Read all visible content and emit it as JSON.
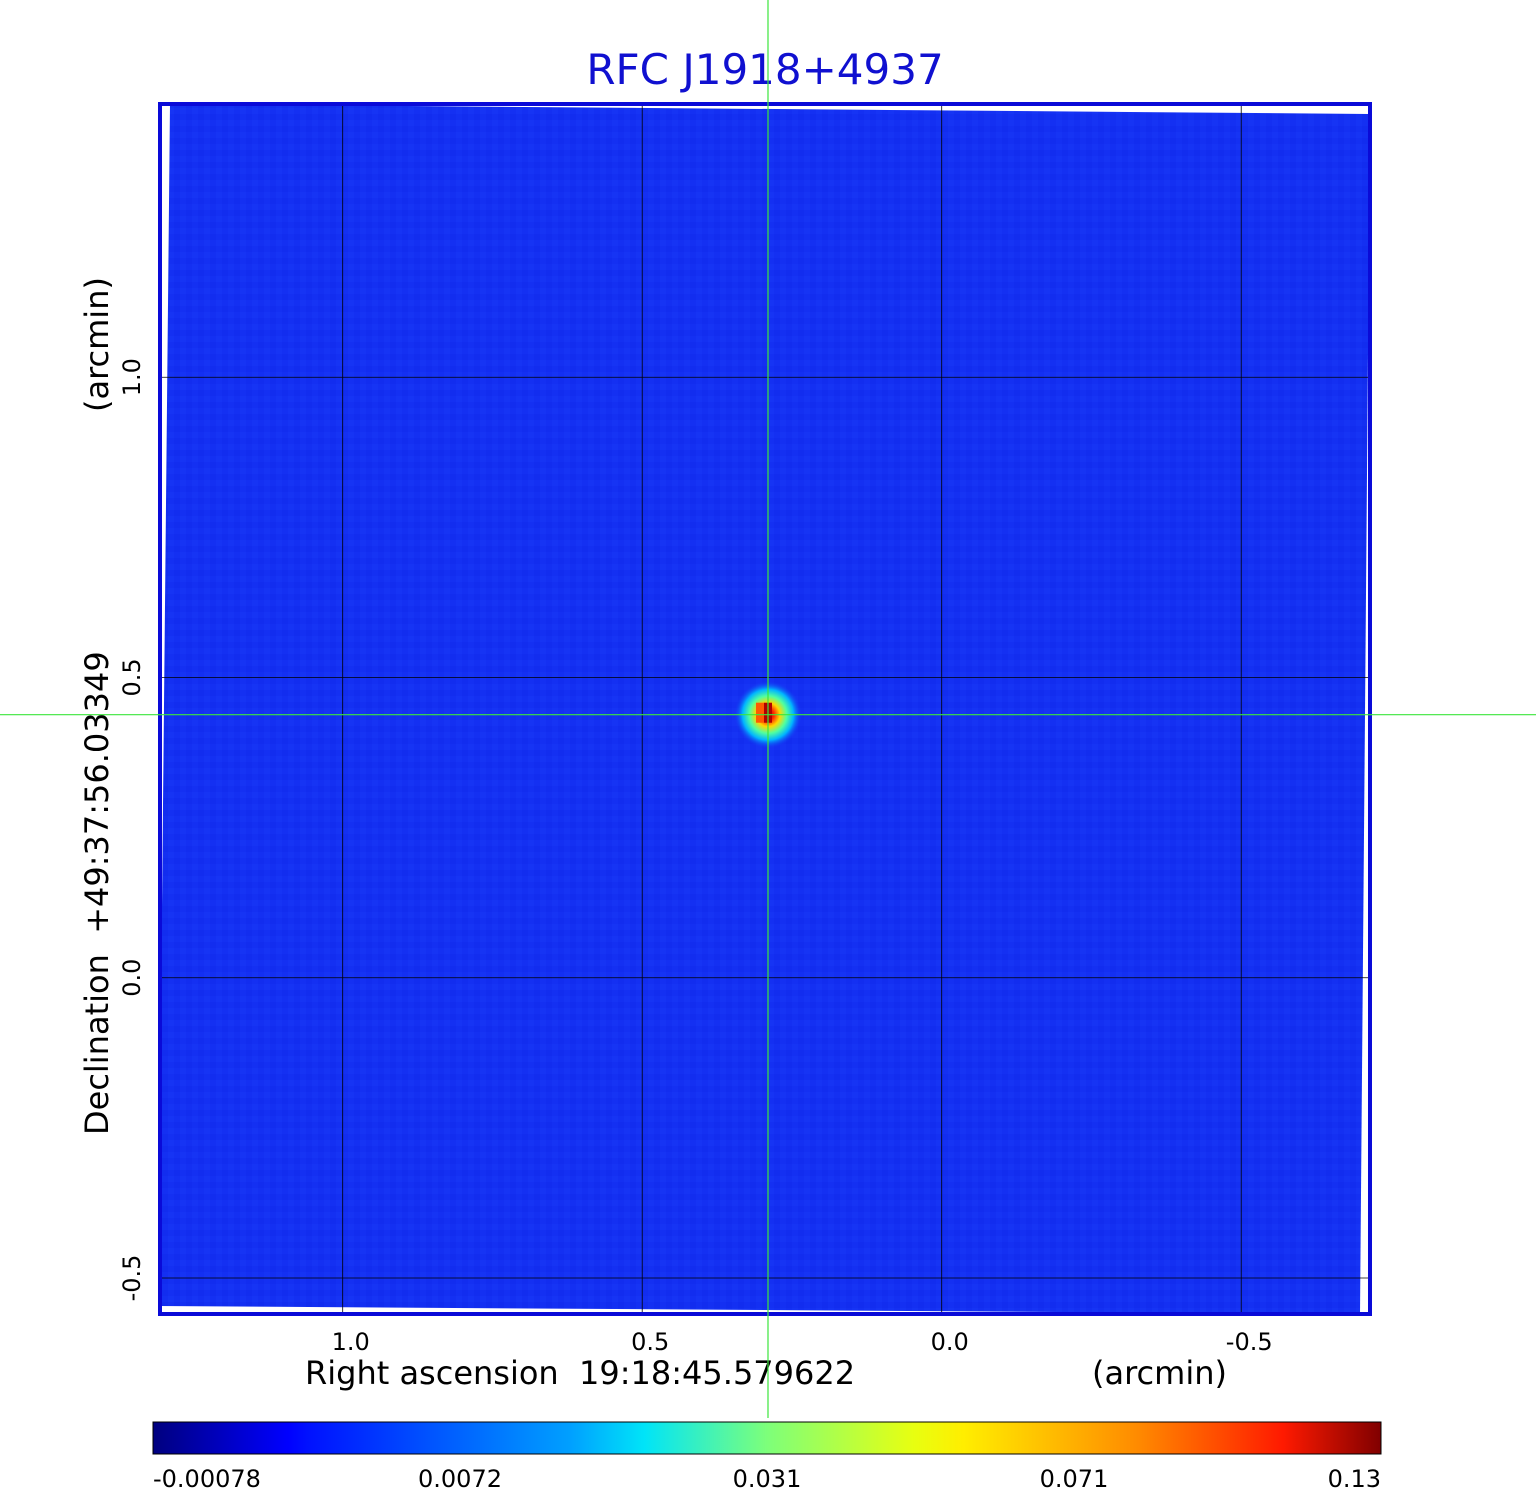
{
  "chart_data": {
    "type": "heatmap",
    "title": "RFC J1918+4937",
    "xlabel": "Right ascension  19:18:45.579622",
    "xunit": "(arcmin)",
    "ylabel": "Declination  +49:37:56.03349",
    "yunit": "(arcmin)",
    "x_range": [
      1.305,
      -0.715
    ],
    "y_range": [
      -0.56,
      1.455
    ],
    "x_ticks": [
      {
        "value": 1.0,
        "label": "1.0"
      },
      {
        "value": 0.5,
        "label": "0.5"
      },
      {
        "value": 0.0,
        "label": "0.0"
      },
      {
        "value": -0.5,
        "label": "-0.5"
      }
    ],
    "y_ticks": [
      {
        "value": 1.0,
        "label": "1.0"
      },
      {
        "value": 0.5,
        "label": "0.5"
      },
      {
        "value": 0.0,
        "label": "0.0"
      },
      {
        "value": -0.5,
        "label": "-0.5"
      }
    ],
    "grid": true,
    "crosshair": {
      "x": 0.29,
      "y": 0.438
    },
    "source": {
      "x": 0.29,
      "y": 0.438,
      "peak": 0.13
    },
    "colorbar": {
      "ticks": [
        "-0.00078",
        "0.0072",
        "0.031",
        "0.071",
        "0.13"
      ],
      "colormap": "jet"
    }
  },
  "colors": {
    "title": "#1010d0",
    "background_map": "#1430f2",
    "frame": "#0a0ad8",
    "crosshair": "#3ce63c",
    "grid": "#000000"
  }
}
